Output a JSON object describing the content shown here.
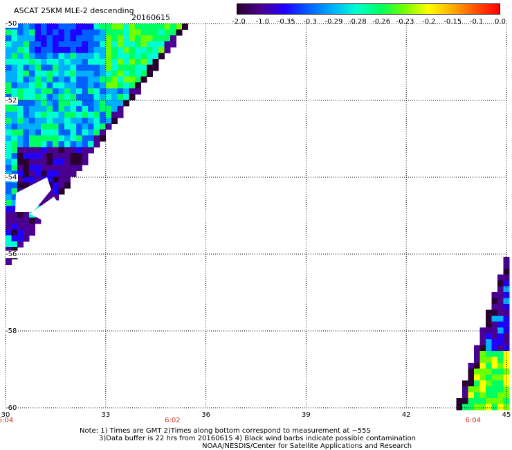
{
  "header": {
    "title": "ASCAT 25KM MLE-2 descending",
    "date": "20160615"
  },
  "colorbar": {
    "colors": [
      "#2a0030",
      "#4a0090",
      "#2000ff",
      "#0060ff",
      "#00b0ff",
      "#00ffd0",
      "#00ff60",
      "#70ff00",
      "#ffff00",
      "#ffb000",
      "#ff5000",
      "#ff0000"
    ],
    "labels": [
      "-2.0",
      "-1.0",
      "-0.35",
      "-0.3",
      "-0.29",
      "-0.28",
      "-0.26",
      "-0.23",
      "-0.2",
      "-0.15",
      "-0.1",
      "0.0"
    ]
  },
  "axes": {
    "lon_range": [
      30,
      45
    ],
    "lat_range": [
      -60,
      -50
    ],
    "x_ticks": [
      "30",
      "33",
      "36",
      "39",
      "42",
      "45"
    ],
    "y_ticks": [
      "-50",
      "-52",
      "-54",
      "-56",
      "-58",
      "-60"
    ],
    "time_labels": [
      {
        "lon": 30,
        "text": "6:04"
      },
      {
        "lon": 35,
        "text": "6:02"
      },
      {
        "lon": 44,
        "text": "6:04"
      }
    ]
  },
  "notes": [
    "Note: 1) Times are GMT 2)Times along bottom correspond to measurement at ~55S",
    "3)Data buffer is 22 hrs from 20160615 4) Black wind barbs indicate possible contamination",
    "NOAA/NESDIS/Center for Satellite Applications and Research"
  ]
}
